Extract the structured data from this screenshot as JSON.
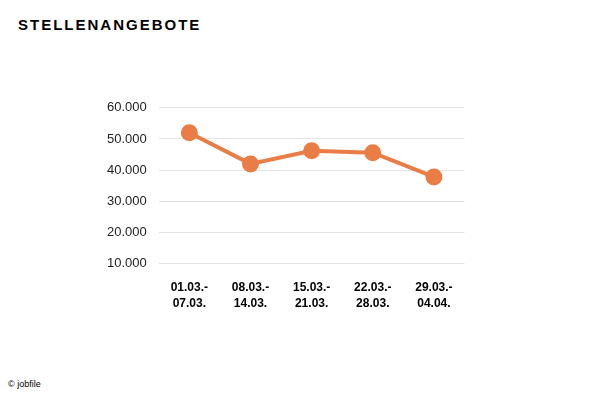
{
  "chart_data": {
    "type": "line",
    "title": "STELLENANGEBOTE",
    "source": "© jobfile",
    "categories": [
      [
        "01.03.-",
        "07.03."
      ],
      [
        "08.03.-",
        "14.03."
      ],
      [
        "15.03.-",
        "21.03."
      ],
      [
        "22.03.-",
        "28.03."
      ],
      [
        "29.03.-",
        "04.04."
      ]
    ],
    "values": [
      52000,
      42000,
      46200,
      45600,
      37800
    ],
    "color": "#ea7d45",
    "marker": "circle",
    "ylim": [
      10000,
      60000
    ],
    "yticks": [
      {
        "value": 10000,
        "label": "10.000"
      },
      {
        "value": 20000,
        "label": "20.000"
      },
      {
        "value": 30000,
        "label": "30.000"
      },
      {
        "value": 40000,
        "label": "40.000"
      },
      {
        "value": 50000,
        "label": "50.000"
      },
      {
        "value": 60000,
        "label": "60.000"
      }
    ],
    "grid": true
  }
}
